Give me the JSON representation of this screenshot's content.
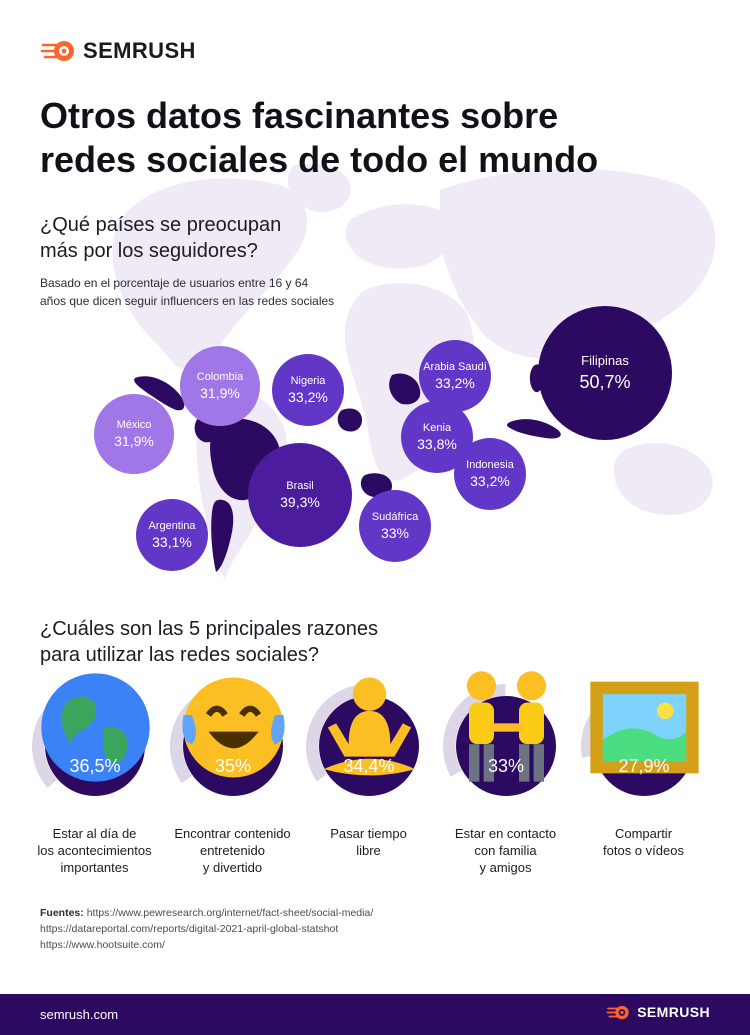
{
  "brand": {
    "name": "SEMRUSH",
    "accent": "#ff642d"
  },
  "title": {
    "line1": "Otros datos fascinantes sobre",
    "line2": "redes sociales de todo el mundo"
  },
  "section1": {
    "question_line1": "¿Qué países se preocupan",
    "question_line2": "más por los seguidores?",
    "subtitle_line1": "Basado en el porcentaje de usuarios entre 16 y 64",
    "subtitle_line2": "años que dicen seguir influencers en las redes sociales"
  },
  "chart_data": [
    {
      "type": "bubble",
      "title": "¿Qué países se preocupan más por los seguidores?",
      "unit": "%",
      "series": [
        {
          "label": "México",
          "value": 31.9,
          "display": "31,9%",
          "color": "#a176e6"
        },
        {
          "label": "Colombia",
          "value": 31.9,
          "display": "31,9%",
          "color": "#a176e6"
        },
        {
          "label": "Argentina",
          "value": 33.1,
          "display": "33,1%",
          "color": "#6237c7"
        },
        {
          "label": "Nigeria",
          "value": 33.2,
          "display": "33,2%",
          "color": "#6237c7"
        },
        {
          "label": "Arabia Saudí",
          "value": 33.2,
          "display": "33,2%",
          "color": "#6237c7"
        },
        {
          "label": "Indonesia",
          "value": 33.2,
          "display": "33,2%",
          "color": "#6237c7"
        },
        {
          "label": "Sudáfrica",
          "value": 33,
          "display": "33%",
          "color": "#6237c7"
        },
        {
          "label": "Kenia",
          "value": 33.8,
          "display": "33,8%",
          "color": "#6237c7"
        },
        {
          "label": "Brasil",
          "value": 39.3,
          "display": "39,3%",
          "color": "#4b1c9e"
        },
        {
          "label": "Filipinas",
          "value": 50.7,
          "display": "50,7%",
          "color": "#2d0a61"
        }
      ]
    },
    {
      "type": "donut",
      "title": "¿Cuáles son las 5 principales razones para utilizar las redes sociales?",
      "unit": "%",
      "range": [
        0,
        100
      ],
      "series": [
        {
          "value": 36.5,
          "display": "36,5%",
          "icon": "globe-icon",
          "emoji": "🌍",
          "label_lines": [
            "Estar al día de",
            "los acontecimientos",
            "importantes"
          ]
        },
        {
          "value": 35,
          "display": "35%",
          "icon": "tears-of-joy-icon",
          "emoji": "😂",
          "label_lines": [
            "Encontrar contenido",
            "entretenido",
            "y divertido"
          ]
        },
        {
          "value": 34.4,
          "display": "34,4%",
          "icon": "meditation-icon",
          "emoji": "🧘",
          "label_lines": [
            "Pasar tiempo",
            "libre"
          ]
        },
        {
          "value": 33,
          "display": "33%",
          "icon": "holding-hands-icon",
          "emoji": "🧑‍🤝‍🧑",
          "label_lines": [
            "Estar en contacto",
            "con familia",
            "y amigos"
          ]
        },
        {
          "value": 27.9,
          "display": "27,9%",
          "icon": "framed-picture-icon",
          "emoji": "🖼️",
          "label_lines": [
            "Compartir",
            "fotos o vídeos"
          ]
        }
      ]
    }
  ],
  "section2": {
    "question_line1": "¿Cuáles son las 5 principales razones",
    "question_line2": "para utilizar las redes sociales?"
  },
  "sources": {
    "label": "Fuentes:",
    "links": [
      "https://www.pewresearch.org/internet/fact-sheet/social-media/",
      "https://datareportal.com/reports/digital-2021-april-global-statshot",
      "https://www.hootsuite.com/"
    ]
  },
  "footer": {
    "site": "semrush.com",
    "brand": "SEMRUSH"
  },
  "colors": {
    "dark_purple": "#2d0a61",
    "ring_track": "#dcd6e6",
    "map": "#efeaf6"
  }
}
